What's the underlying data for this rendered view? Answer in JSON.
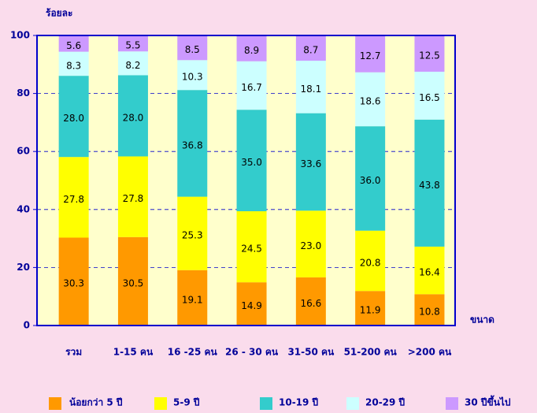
{
  "chart_data": {
    "type": "stacked_bar",
    "y_axis_label": "ร้อยละ",
    "x_axis_label": "ขนาด",
    "categories": [
      "รวม",
      "1-15 คน",
      "16 -25 คน",
      "26 - 30 คน",
      "31-50 คน",
      "51-200 คน",
      ">200 คน"
    ],
    "series": [
      {
        "name": "น้อยกว่า 5 ปี",
        "color": "#ff9900",
        "values": [
          30.3,
          30.5,
          19.1,
          14.9,
          16.6,
          11.9,
          10.8
        ],
        "value_labels": [
          "30.3",
          "30.5",
          "19.1",
          "14.9",
          "16.6",
          "11.9",
          "10.8"
        ]
      },
      {
        "name": "5-9 ปี",
        "color": "#ffff00",
        "values": [
          27.8,
          27.8,
          25.3,
          24.5,
          23.0,
          20.8,
          16.4
        ],
        "value_labels": [
          "27.8",
          "27.8",
          "25.3",
          "24.5",
          "23.0",
          "20.8",
          "16.4"
        ]
      },
      {
        "name": "10-19 ปี",
        "color": "#33cccc",
        "values": [
          28.0,
          28.0,
          36.8,
          35.0,
          33.6,
          36.0,
          43.8
        ],
        "value_labels": [
          "28.0",
          "28.0",
          "36.8",
          "35.0",
          "33.6",
          "36.0",
          "43.8"
        ]
      },
      {
        "name": "20-29 ปี",
        "color": "#ccffff",
        "values": [
          8.3,
          8.2,
          10.3,
          16.7,
          18.1,
          18.6,
          16.5
        ],
        "value_labels": [
          "8.3",
          "8.2",
          "10.3",
          "16.7",
          "18.1",
          "18.6",
          "16.5"
        ]
      },
      {
        "name": "30 ปีขึ้นไป",
        "color": "#cc99ff",
        "values": [
          5.6,
          5.5,
          8.5,
          8.9,
          8.7,
          12.7,
          12.5
        ],
        "value_labels": [
          "5.6",
          "5.5",
          "8.5",
          "8.9",
          "8.7",
          "12.7",
          "12.5"
        ]
      }
    ],
    "ylim": [
      0,
      100
    ],
    "yticks": [
      0,
      20,
      40,
      60,
      80,
      100
    ],
    "grid": true,
    "legend": "bottom"
  }
}
